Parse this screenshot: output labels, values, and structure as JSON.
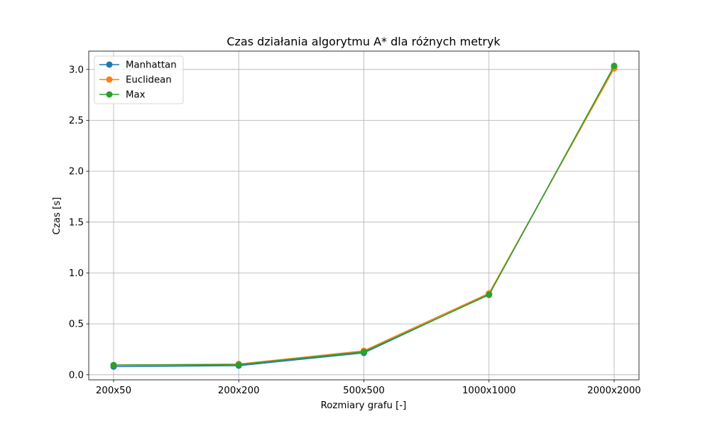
{
  "chart_data": {
    "type": "line",
    "title": "Czas działania algorytmu A* dla różnych metryk",
    "xlabel": "Rozmiary grafu [-]",
    "ylabel": "Czas [s]",
    "categories": [
      "200x50",
      "200x200",
      "500x500",
      "1000x1000",
      "2000x2000"
    ],
    "ylim": [
      -0.05,
      3.18
    ],
    "yticks": [
      "0.0",
      "0.5",
      "1.0",
      "1.5",
      "2.0",
      "2.5",
      "3.0"
    ],
    "ytick_values": [
      0,
      0.5,
      1.0,
      1.5,
      2.0,
      2.5,
      3.0
    ],
    "grid": true,
    "legend_position": "top-left",
    "series": [
      {
        "name": "Manhattan",
        "color": "#1f77b4",
        "values": [
          0.08,
          0.09,
          0.215,
          0.79,
          3.02
        ]
      },
      {
        "name": "Euclidean",
        "color": "#ff7f0e",
        "values": [
          0.095,
          0.105,
          0.235,
          0.8,
          3.01
        ]
      },
      {
        "name": "Max",
        "color": "#2ca02c",
        "values": [
          0.095,
          0.1,
          0.225,
          0.785,
          3.035
        ]
      }
    ]
  }
}
